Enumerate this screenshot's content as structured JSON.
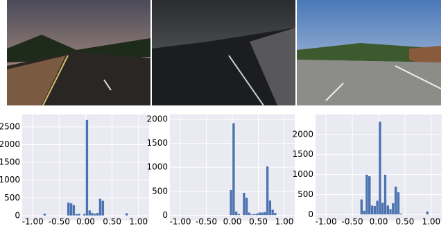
{
  "chart_data": [
    {
      "type": "histogram",
      "color": "#4c72b0",
      "grid": true,
      "bins": [
        -1,
        -0.95,
        -0.9,
        -0.85,
        -0.8,
        -0.75,
        -0.7,
        -0.65,
        -0.6,
        -0.55,
        -0.5,
        -0.45,
        -0.4,
        -0.35,
        -0.3,
        -0.25,
        -0.2,
        -0.15,
        -0.1,
        -0.05,
        0,
        0.05,
        0.1,
        0.15,
        0.2,
        0.25,
        0.3,
        0.35,
        0.4,
        0.45,
        0.5,
        0.55,
        0.6,
        0.65,
        0.7,
        0.75,
        0.8,
        0.85,
        0.9,
        0.95,
        1
      ],
      "values": [
        0,
        0,
        0,
        0,
        60,
        0,
        0,
        0,
        0,
        0,
        0,
        0,
        0,
        370,
        350,
        300,
        50,
        60,
        0,
        50,
        2700,
        150,
        80,
        60,
        80,
        480,
        420,
        0,
        0,
        0,
        0,
        0,
        0,
        0,
        0,
        70,
        0,
        0,
        0,
        0
      ],
      "xlim": [
        -1.2,
        1.2
      ],
      "ylim": [
        -140,
        2850
      ],
      "xticks": [
        {
          "value": -1,
          "label": "-1.00"
        },
        {
          "value": -0.5,
          "label": "-0.50"
        },
        {
          "value": 0,
          "label": "0.00"
        },
        {
          "value": 0.5,
          "label": "0.50"
        },
        {
          "value": 1,
          "label": "1.00"
        }
      ],
      "yticks": [
        0,
        500,
        1000,
        1500,
        2000,
        2500
      ]
    },
    {
      "type": "histogram",
      "color": "#4c72b0",
      "grid": true,
      "bins": [
        -1,
        -0.95,
        -0.9,
        -0.85,
        -0.8,
        -0.75,
        -0.7,
        -0.65,
        -0.6,
        -0.55,
        -0.5,
        -0.45,
        -0.4,
        -0.35,
        -0.3,
        -0.25,
        -0.2,
        -0.15,
        -0.1,
        -0.05,
        0,
        0.05,
        0.1,
        0.15,
        0.2,
        0.25,
        0.3,
        0.35,
        0.4,
        0.45,
        0.5,
        0.55,
        0.6,
        0.65,
        0.7,
        0.75,
        0.8,
        0.85,
        0.9,
        0.95,
        1
      ],
      "values": [
        0,
        0,
        0,
        0,
        0,
        0,
        0,
        0,
        0,
        0,
        0,
        0,
        0,
        0,
        0,
        0,
        0,
        0,
        0,
        530,
        1920,
        80,
        30,
        0,
        470,
        370,
        60,
        20,
        30,
        40,
        60,
        60,
        70,
        1020,
        310,
        120,
        50,
        0,
        0,
        0
      ],
      "xlim": [
        -1.2,
        1.2
      ],
      "ylim": [
        -110,
        2100
      ],
      "xticks": [
        {
          "value": -1,
          "label": "-1.00"
        },
        {
          "value": -0.5,
          "label": "-0.50"
        },
        {
          "value": 0,
          "label": "0.00"
        },
        {
          "value": 0.5,
          "label": "0.50"
        },
        {
          "value": 1,
          "label": "1.00"
        }
      ],
      "yticks": [
        0,
        500,
        1000,
        1500,
        2000
      ]
    },
    {
      "type": "histogram",
      "color": "#4c72b0",
      "grid": true,
      "bins": [
        -1,
        -0.95,
        -0.9,
        -0.85,
        -0.8,
        -0.75,
        -0.7,
        -0.65,
        -0.6,
        -0.55,
        -0.5,
        -0.45,
        -0.4,
        -0.35,
        -0.3,
        -0.25,
        -0.2,
        -0.15,
        -0.1,
        -0.05,
        0,
        0.05,
        0.1,
        0.15,
        0.2,
        0.25,
        0.3,
        0.35,
        0.4,
        0.45,
        0.5,
        0.55,
        0.6,
        0.65,
        0.7,
        0.75,
        0.8,
        0.85,
        0.9,
        0.95,
        1
      ],
      "values": [
        0,
        0,
        0,
        0,
        0,
        0,
        0,
        0,
        0,
        0,
        0,
        0,
        0,
        380,
        100,
        1000,
        960,
        230,
        220,
        350,
        2320,
        300,
        1000,
        230,
        140,
        290,
        700,
        560,
        30,
        0,
        0,
        0,
        0,
        0,
        0,
        0,
        0,
        0,
        80,
        0
      ],
      "xlim": [
        -1.2,
        1.2
      ],
      "ylim": [
        -150,
        2500
      ],
      "xticks": [
        {
          "value": -1,
          "label": "-1.00"
        },
        {
          "value": -0.5,
          "label": "-0.50"
        },
        {
          "value": 0,
          "label": "0.00"
        },
        {
          "value": 0.5,
          "label": "0.50"
        },
        {
          "value": 1,
          "label": "1.00"
        }
      ],
      "yticks": [
        0,
        500,
        1000,
        1500,
        2000
      ]
    }
  ]
}
